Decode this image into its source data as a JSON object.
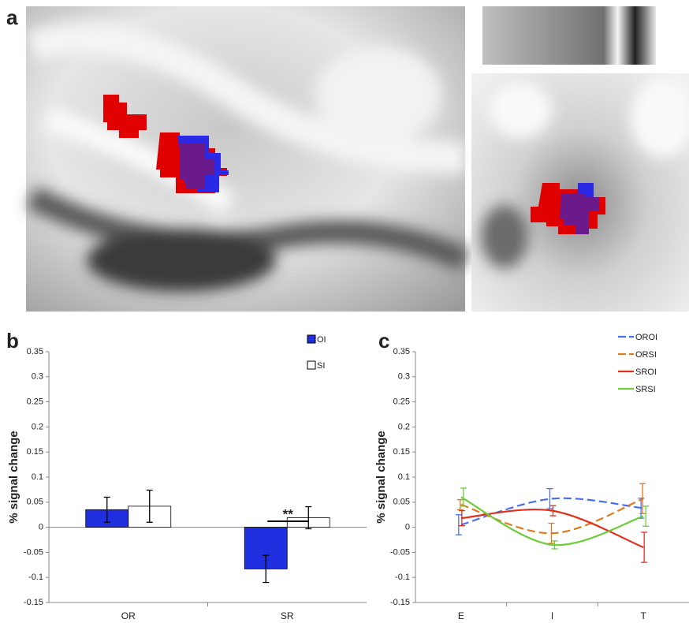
{
  "figure": {
    "labels": [
      "a",
      "b",
      "c"
    ]
  },
  "chart_data": [
    {
      "type": "bar",
      "categories": [
        "OR",
        "SR"
      ],
      "y_label": "% signal change",
      "annotation": "**",
      "series": [
        {
          "name": "OI",
          "color": "#1f2fe0",
          "values": [
            0.035,
            -0.083
          ],
          "errors": [
            0.025,
            0.027
          ]
        },
        {
          "name": "SI",
          "color": "#ffffff",
          "values": [
            0.042,
            0.019
          ],
          "errors": [
            0.032,
            0.022
          ]
        }
      ],
      "ylim": [
        -0.15,
        0.35
      ],
      "yticks": [
        -0.15,
        -0.1,
        -0.05,
        0,
        0.05,
        0.1,
        0.15,
        0.2,
        0.25,
        0.3,
        0.35
      ]
    },
    {
      "type": "line",
      "categories": [
        "E",
        "I",
        "T"
      ],
      "y_label": "% signal change",
      "series": [
        {
          "name": "OROI",
          "color": "#4a6ef0",
          "dashed": true,
          "values": [
            0.005,
            0.057,
            0.038
          ],
          "errors": [
            0.02,
            0.02,
            0.02
          ]
        },
        {
          "name": "ORSI",
          "color": "#e07a20",
          "dashed": true,
          "values": [
            0.045,
            -0.012,
            0.057
          ],
          "errors": [
            0.01,
            0.02,
            0.03
          ]
        },
        {
          "name": "SROI",
          "color": "#e0301e",
          "dashed": false,
          "values": [
            0.018,
            0.033,
            -0.04
          ],
          "errors": [
            0.015,
            0.01,
            0.03
          ]
        },
        {
          "name": "SRSI",
          "color": "#6ccc3a",
          "dashed": false,
          "values": [
            0.06,
            -0.035,
            0.022
          ],
          "errors": [
            0.018,
            0.008,
            0.02
          ]
        }
      ],
      "ylim": [
        -0.15,
        0.35
      ],
      "yticks": [
        -0.15,
        -0.1,
        -0.05,
        0,
        0.05,
        0.1,
        0.15,
        0.2,
        0.25,
        0.3,
        0.35
      ]
    }
  ]
}
